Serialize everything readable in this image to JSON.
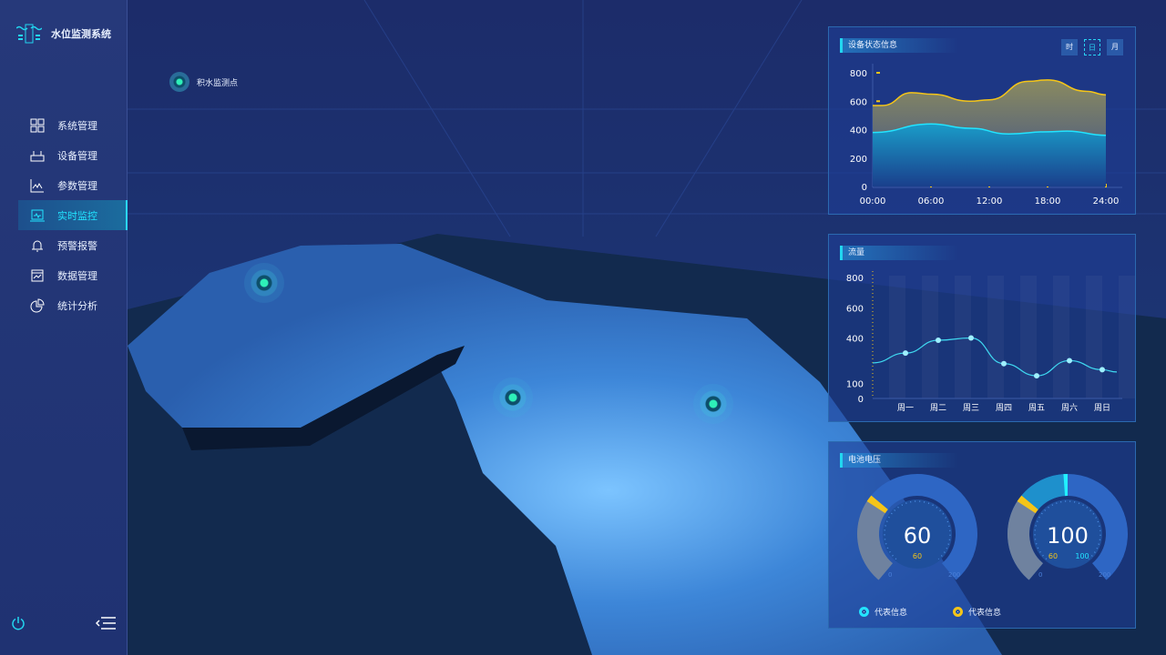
{
  "app": {
    "title": "水位监测系统"
  },
  "sidebar": {
    "items": [
      {
        "label": "系统管理",
        "icon": "grid-icon"
      },
      {
        "label": "设备管理",
        "icon": "router-icon"
      },
      {
        "label": "参数管理",
        "icon": "line-chart-icon"
      },
      {
        "label": "实时监控",
        "icon": "monitor-icon",
        "active": true
      },
      {
        "label": "预警报警",
        "icon": "bell-icon"
      },
      {
        "label": "数据管理",
        "icon": "calendar-chart-icon"
      },
      {
        "label": "统计分析",
        "icon": "pie-chart-icon"
      }
    ]
  },
  "map": {
    "legend_label": "积水监测点",
    "markers": 3
  },
  "colors": {
    "accent": "#22e4ff",
    "yellow": "#f5c518",
    "bg": "#1b2d6b"
  },
  "chart_data": [
    {
      "type": "area",
      "title": "设备状态信息",
      "x": [
        "00:00",
        "06:00",
        "12:00",
        "18:00",
        "24:00"
      ],
      "ylim": [
        0,
        800
      ],
      "yticks": [
        0,
        200,
        400,
        600,
        800
      ],
      "series": [
        {
          "color": "#f5c518",
          "points": [
            [
              0,
              570
            ],
            [
              1,
              570
            ],
            [
              4,
              660
            ],
            [
              6,
              650
            ],
            [
              10,
              600
            ],
            [
              12,
              610
            ],
            [
              16,
              740
            ],
            [
              18,
              750
            ],
            [
              22,
              670
            ],
            [
              24,
              645
            ]
          ]
        },
        {
          "color": "#22e4ff",
          "points": [
            [
              0,
              380
            ],
            [
              6,
              440
            ],
            [
              10,
              410
            ],
            [
              14,
              370
            ],
            [
              18,
              385
            ],
            [
              20,
              390
            ],
            [
              24,
              360
            ]
          ]
        }
      ],
      "toggle": [
        "时",
        "日",
        "月"
      ],
      "toggle_selected": "日"
    },
    {
      "type": "line",
      "title": "流量",
      "categories": [
        "周一",
        "周二",
        "周三",
        "周四",
        "周五",
        "周六",
        "周日"
      ],
      "values": [
        300,
        385,
        400,
        230,
        150,
        250,
        190
      ],
      "ylim": [
        0,
        800
      ],
      "yticks": [
        0,
        100,
        400,
        600,
        800
      ]
    },
    {
      "type": "gauge",
      "title": "电池电压",
      "gauges": [
        {
          "value": "60",
          "sub": [
            "60"
          ],
          "min": "0",
          "max": "200"
        },
        {
          "value": "100",
          "sub": [
            "60",
            "100"
          ],
          "min": "0",
          "max": "200"
        }
      ],
      "legend": [
        {
          "label": "代表信息",
          "color": "#22e4ff"
        },
        {
          "label": "代表信息",
          "color": "#f5c518"
        }
      ]
    }
  ]
}
